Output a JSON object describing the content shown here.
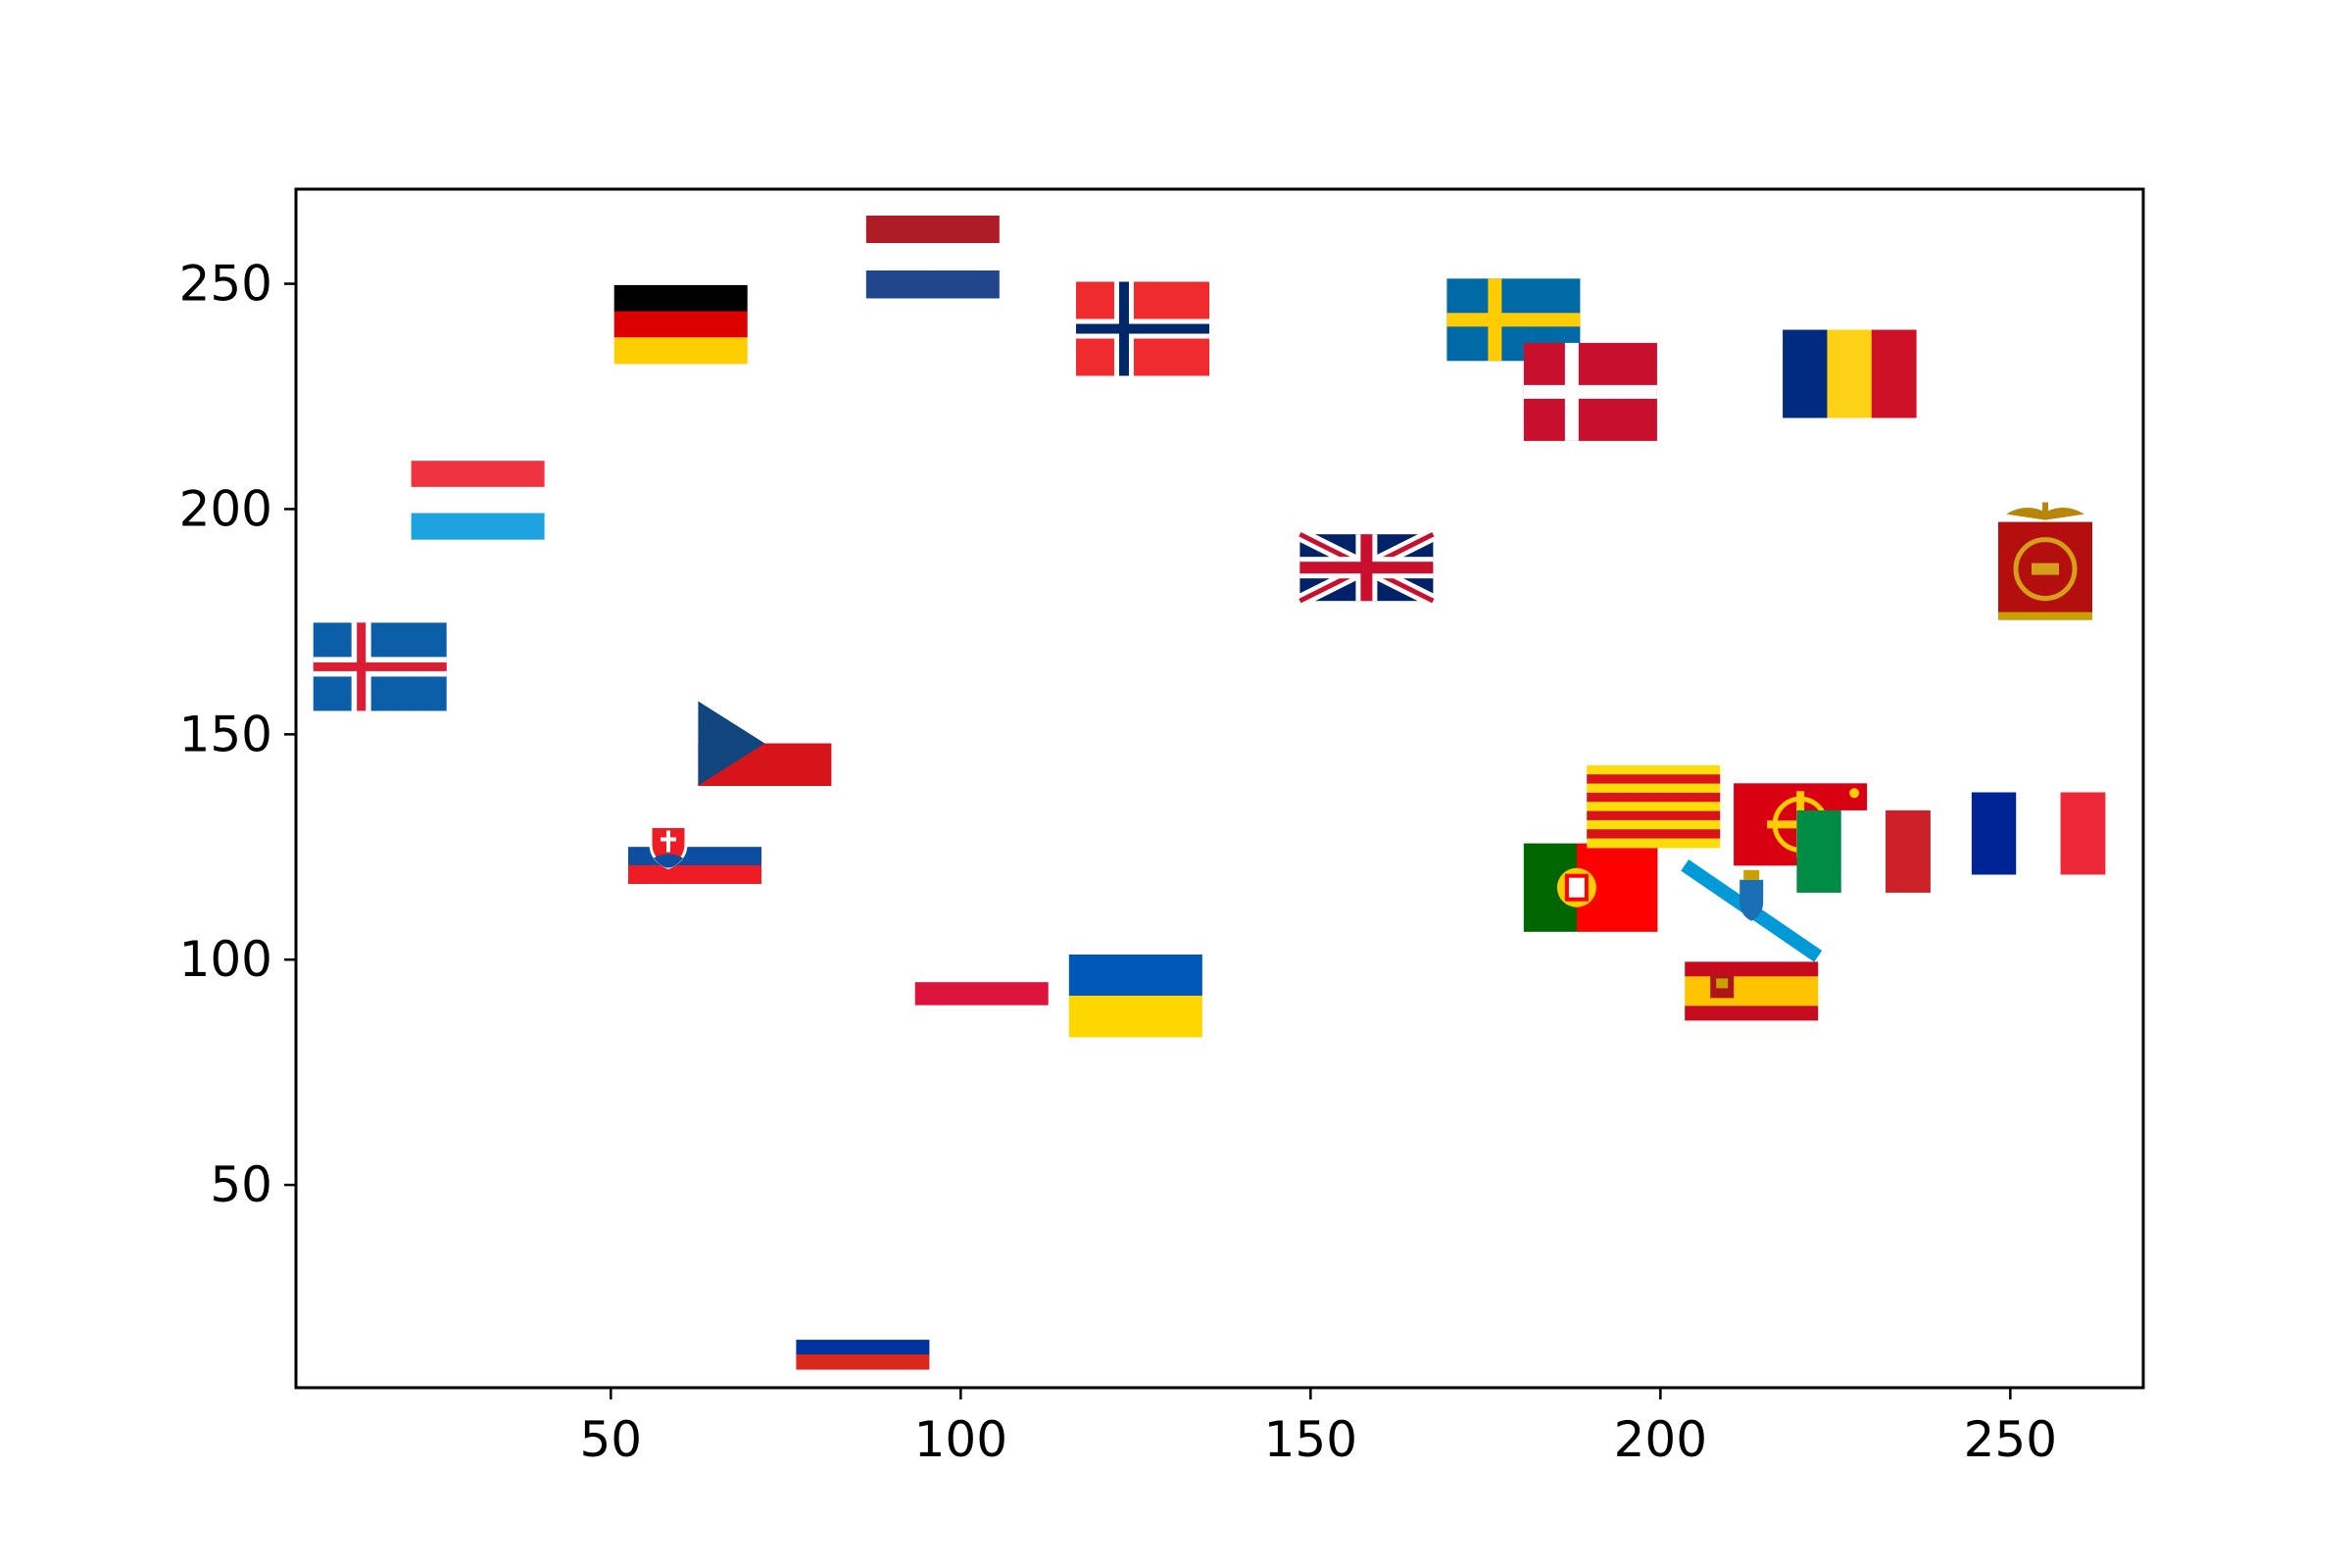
{
  "chart_data": {
    "type": "scatter",
    "title": "",
    "xlabel": "",
    "ylabel": "",
    "xlim": [
      5,
      269
    ],
    "ylim": [
      5,
      271
    ],
    "x_ticks": [
      50,
      100,
      150,
      200,
      250
    ],
    "y_ticks": [
      50,
      100,
      150,
      200,
      250
    ],
    "grid": false,
    "markers": "flag images",
    "points": [
      {
        "flag": "iceland",
        "x": 17,
        "y": 165
      },
      {
        "flag": "luxembourg",
        "x": 31,
        "y": 202
      },
      {
        "flag": "germany",
        "x": 60,
        "y": 241
      },
      {
        "flag": "slovakia",
        "x": 62,
        "y": 123
      },
      {
        "flag": "czech-republic",
        "x": 72,
        "y": 148
      },
      {
        "flag": "russia",
        "x": 86,
        "y": 14
      },
      {
        "flag": "netherlands",
        "x": 96,
        "y": 256
      },
      {
        "flag": "poland",
        "x": 103,
        "y": 95
      },
      {
        "flag": "ukraine",
        "x": 125,
        "y": 92
      },
      {
        "flag": "norway",
        "x": 126,
        "y": 240
      },
      {
        "flag": "united-kingdom",
        "x": 158,
        "y": 187
      },
      {
        "flag": "sweden",
        "x": 179,
        "y": 242
      },
      {
        "flag": "denmark",
        "x": 190,
        "y": 226
      },
      {
        "flag": "portugal",
        "x": 190,
        "y": 116
      },
      {
        "flag": "catalonia",
        "x": 199,
        "y": 134
      },
      {
        "flag": "galicia",
        "x": 213,
        "y": 109
      },
      {
        "flag": "spain",
        "x": 213,
        "y": 93
      },
      {
        "flag": "occitania",
        "x": 220,
        "y": 130
      },
      {
        "flag": "italy",
        "x": 229,
        "y": 124
      },
      {
        "flag": "romania",
        "x": 227,
        "y": 230
      },
      {
        "flag": "france",
        "x": 254,
        "y": 128
      },
      {
        "flag": "roman-vexillum",
        "x": 255,
        "y": 188
      }
    ]
  }
}
